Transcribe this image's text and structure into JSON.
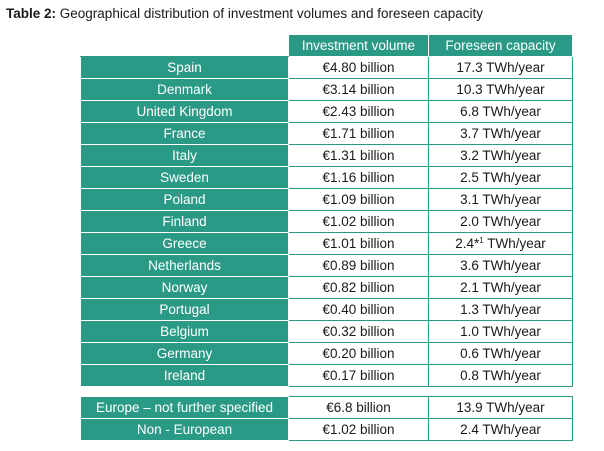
{
  "caption": {
    "label": "Table 2:",
    "text": "Geographical distribution of investment volumes and foreseen capacity"
  },
  "headers": {
    "investment": "Investment volume",
    "capacity": "Foreseen capacity"
  },
  "rows": [
    {
      "country": "Spain",
      "investment": "€4.80 billion",
      "capacity": "17.3 TWh/year"
    },
    {
      "country": "Denmark",
      "investment": "€3.14 billion",
      "capacity": "10.3 TWh/year"
    },
    {
      "country": "United Kingdom",
      "investment": "€2.43 billion",
      "capacity": "6.8 TWh/year"
    },
    {
      "country": "France",
      "investment": "€1.71 billion",
      "capacity": "3.7 TWh/year"
    },
    {
      "country": "Italy",
      "investment": "€1.31 billion",
      "capacity": "3.2 TWh/year"
    },
    {
      "country": "Sweden",
      "investment": "€1.16 billion",
      "capacity": "2.5 TWh/year"
    },
    {
      "country": "Poland",
      "investment": "€1.09 billion",
      "capacity": "3.1 TWh/year"
    },
    {
      "country": "Finland",
      "investment": "€1.02 billion",
      "capacity": "2.0 TWh/year"
    },
    {
      "country": "Greece",
      "investment": "€1.01 billion",
      "capacity": "TWh/year",
      "capacity_prefix": "2.4*",
      "capacity_footnote": "1"
    },
    {
      "country": "Netherlands",
      "investment": "€0.89 billion",
      "capacity": "3.6 TWh/year"
    },
    {
      "country": "Norway",
      "investment": "€0.82 billion",
      "capacity": "2.1 TWh/year"
    },
    {
      "country": "Portugal",
      "investment": "€0.40 billion",
      "capacity": "1.3 TWh/year"
    },
    {
      "country": "Belgium",
      "investment": "€0.32 billion",
      "capacity": "1.0 TWh/year"
    },
    {
      "country": "Germany",
      "investment": "€0.20 billion",
      "capacity": "0.6 TWh/year"
    },
    {
      "country": "Ireland",
      "investment": "€0.17 billion",
      "capacity": "0.8 TWh/year"
    }
  ],
  "summary_rows": [
    {
      "country": "Europe – not further specified",
      "investment": "€6.8 billion",
      "capacity": "13.9 TWh/year"
    },
    {
      "country": "Non - European",
      "investment": "€1.02 billion",
      "capacity": "2.4 TWh/year"
    }
  ],
  "colors": {
    "accent": "#2a9a86",
    "header_text": "#ffffff",
    "body_text": "#1a1a1a"
  }
}
